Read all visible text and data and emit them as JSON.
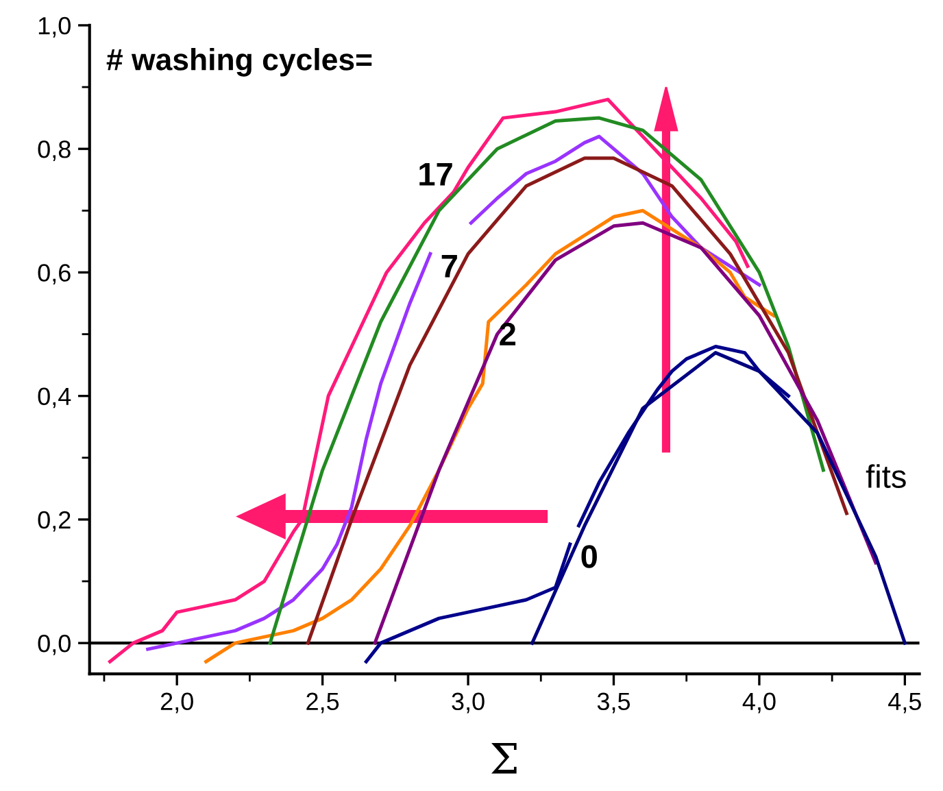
{
  "chart_data": {
    "type": "line",
    "xlabel": "Σ",
    "xlim": [
      1.7,
      4.55
    ],
    "ylim": [
      -0.05,
      1.0
    ],
    "xticks": [
      {
        "value": 2.0,
        "label": "2,0"
      },
      {
        "value": 2.5,
        "label": "2,5"
      },
      {
        "value": 3.0,
        "label": "3,0"
      },
      {
        "value": 3.5,
        "label": "3,5"
      },
      {
        "value": 4.0,
        "label": "4,0"
      },
      {
        "value": 4.5,
        "label": "4,5"
      }
    ],
    "yticks": [
      {
        "value": 0.0,
        "label": "0,0"
      },
      {
        "value": 0.2,
        "label": "0,2"
      },
      {
        "value": 0.4,
        "label": "0,4"
      },
      {
        "value": 0.6,
        "label": "0,6"
      },
      {
        "value": 0.8,
        "label": "0,8"
      },
      {
        "value": 1.0,
        "label": "1,0"
      }
    ],
    "grid": false,
    "legend": false,
    "marker": "none",
    "line_style": "solid",
    "ref_lines": [
      {
        "axis": "y",
        "value": 0,
        "color": "#000000"
      }
    ],
    "series": [
      {
        "color": "#ff1a7a",
        "x": [
          1.77,
          1.85,
          1.95,
          2.0,
          2.1,
          2.2,
          2.3,
          2.35,
          2.4,
          2.43,
          2.52,
          2.62,
          2.72,
          2.85,
          2.95,
          3.0,
          3.12,
          3.3,
          3.48,
          3.64,
          3.8,
          3.92,
          3.96
        ],
        "values": [
          -0.03,
          0.0,
          0.02,
          0.05,
          0.06,
          0.07,
          0.1,
          0.14,
          0.18,
          0.2,
          0.4,
          0.5,
          0.6,
          0.68,
          0.73,
          0.77,
          0.85,
          0.86,
          0.88,
          0.8,
          0.72,
          0.65,
          0.61
        ]
      },
      {
        "color": "#9933ff",
        "x": [
          1.9,
          2.0,
          2.2,
          2.3,
          2.4,
          2.5,
          2.55,
          2.6,
          2.65,
          2.7,
          2.8,
          2.87,
          null,
          3.01,
          3.1,
          3.2,
          3.3,
          3.4,
          3.45,
          3.5,
          3.6,
          3.7,
          3.8,
          3.9,
          4.0
        ],
        "values": [
          -0.01,
          0.0,
          0.02,
          0.04,
          0.07,
          0.12,
          0.16,
          0.22,
          0.33,
          0.42,
          0.55,
          0.63,
          null,
          0.68,
          0.72,
          0.76,
          0.78,
          0.81,
          0.82,
          0.8,
          0.76,
          0.69,
          0.64,
          0.61,
          0.58
        ]
      },
      {
        "color": "#ff8000",
        "x": [
          2.1,
          2.2,
          2.4,
          2.5,
          2.6,
          2.7,
          2.8,
          2.9,
          3.0,
          3.05,
          3.07,
          3.2,
          3.3,
          3.4,
          3.5,
          3.6,
          3.7,
          3.8,
          3.9,
          3.95,
          4.05
        ],
        "values": [
          -0.03,
          0.0,
          0.02,
          0.04,
          0.07,
          0.12,
          0.19,
          0.28,
          0.38,
          0.42,
          0.52,
          0.58,
          0.63,
          0.66,
          0.69,
          0.7,
          0.67,
          0.64,
          0.6,
          0.56,
          0.53
        ]
      },
      {
        "color": "#00008b",
        "x": [
          2.65,
          2.7,
          2.8,
          2.9,
          3.0,
          3.1,
          3.2,
          3.3,
          3.35,
          null,
          3.38,
          3.45,
          3.55,
          3.65,
          3.7,
          3.75,
          3.85,
          3.95,
          4.0,
          4.1
        ],
        "values": [
          -0.03,
          0.0,
          0.02,
          0.04,
          0.05,
          0.06,
          0.07,
          0.09,
          0.16,
          null,
          0.19,
          0.26,
          0.34,
          0.41,
          0.44,
          0.46,
          0.48,
          0.47,
          0.44,
          0.4
        ]
      },
      {
        "color": "#228b22",
        "x": [
          2.32,
          2.5,
          2.7,
          2.9,
          3.1,
          3.3,
          3.45,
          3.6,
          3.8,
          4.0,
          4.1,
          4.22
        ],
        "values": [
          0.0,
          0.28,
          0.52,
          0.7,
          0.8,
          0.845,
          0.85,
          0.83,
          0.75,
          0.6,
          0.48,
          0.28
        ]
      },
      {
        "color": "#8b1a1a",
        "x": [
          2.45,
          2.6,
          2.8,
          3.0,
          3.2,
          3.4,
          3.5,
          3.7,
          3.9,
          4.1,
          4.3
        ],
        "values": [
          0.0,
          0.2,
          0.45,
          0.63,
          0.74,
          0.785,
          0.785,
          0.74,
          0.63,
          0.47,
          0.21
        ]
      },
      {
        "color": "#800080",
        "x": [
          2.68,
          2.9,
          3.1,
          3.3,
          3.5,
          3.6,
          3.8,
          4.0,
          4.2,
          4.4
        ],
        "values": [
          0.0,
          0.28,
          0.5,
          0.62,
          0.675,
          0.68,
          0.64,
          0.53,
          0.36,
          0.13
        ]
      },
      {
        "color": "#000080",
        "x": [
          3.22,
          3.4,
          3.6,
          3.85,
          4.0,
          4.2,
          4.4,
          4.5
        ],
        "values": [
          0.0,
          0.19,
          0.38,
          0.47,
          0.44,
          0.34,
          0.14,
          0.0
        ]
      }
    ],
    "annotations": [
      "# washing cycles=",
      {
        "text": "17",
        "x": 2.95,
        "y": 0.73
      },
      {
        "text": "7",
        "x": 2.87,
        "y": 0.63
      },
      {
        "text": "2",
        "x": 3.07,
        "y": 0.52
      },
      {
        "text": "0",
        "x": 3.35,
        "y": 0.16
      },
      "fits"
    ]
  }
}
